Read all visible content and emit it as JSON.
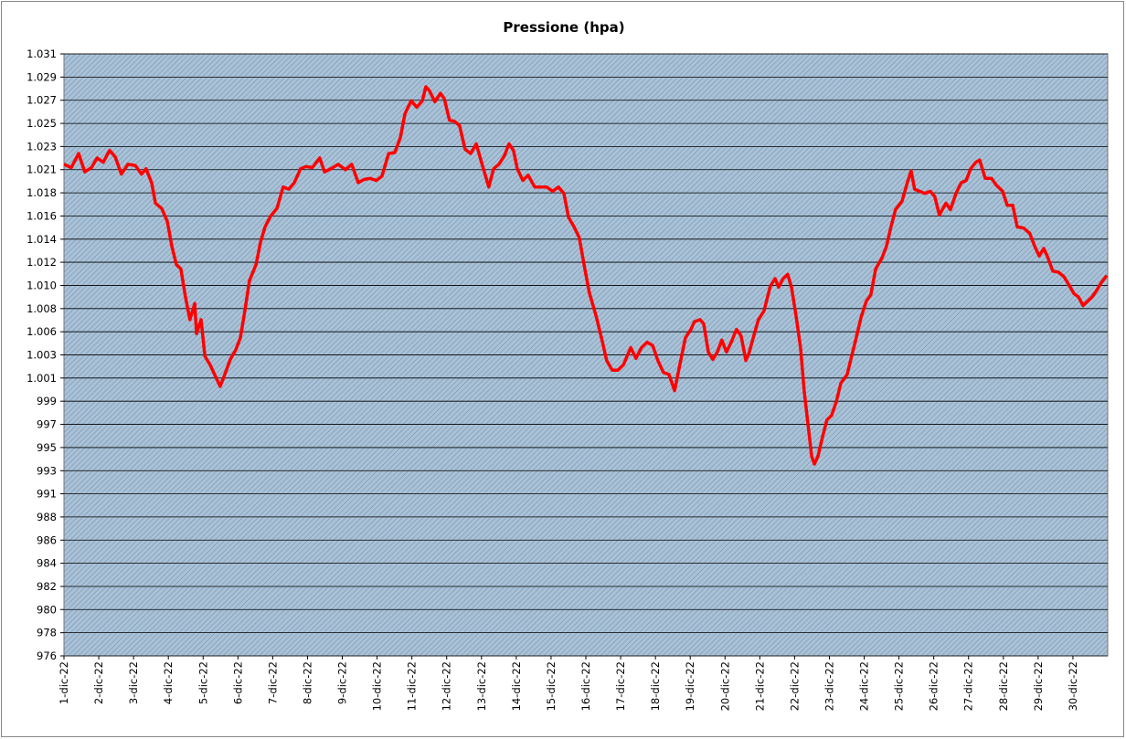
{
  "chart_data": {
    "type": "line",
    "title": "Pressione (hpa)",
    "color": "#ff0000",
    "grid": true,
    "xlim": [
      1,
      31
    ],
    "xticks": [
      {
        "value": 1,
        "label": "1-dic-22"
      },
      {
        "value": 2,
        "label": "2-dic-22"
      },
      {
        "value": 3,
        "label": "3-dic-22"
      },
      {
        "value": 4,
        "label": "4-dic-22"
      },
      {
        "value": 5,
        "label": "5-dic-22"
      },
      {
        "value": 6,
        "label": "6-dic-22"
      },
      {
        "value": 7,
        "label": "7-dic-22"
      },
      {
        "value": 8,
        "label": "8-dic-22"
      },
      {
        "value": 9,
        "label": "9-dic-22"
      },
      {
        "value": 10,
        "label": "10-dic-22"
      },
      {
        "value": 11,
        "label": "11-dic-22"
      },
      {
        "value": 12,
        "label": "12-dic-22"
      },
      {
        "value": 13,
        "label": "13-dic-22"
      },
      {
        "value": 14,
        "label": "14-dic-22"
      },
      {
        "value": 15,
        "label": "15-dic-22"
      },
      {
        "value": 16,
        "label": "16-dic-22"
      },
      {
        "value": 17,
        "label": "17-dic-22"
      },
      {
        "value": 18,
        "label": "18-dic-22"
      },
      {
        "value": 19,
        "label": "19-dic-22"
      },
      {
        "value": 20,
        "label": "20-dic-22"
      },
      {
        "value": 21,
        "label": "21-dic-22"
      },
      {
        "value": 22,
        "label": "22-dic-22"
      },
      {
        "value": 23,
        "label": "23-dic-22"
      },
      {
        "value": 24,
        "label": "24-dic-22"
      },
      {
        "value": 25,
        "label": "25-dic-22"
      },
      {
        "value": 26,
        "label": "26-dic-22"
      },
      {
        "value": 27,
        "label": "27-dic-22"
      },
      {
        "value": 28,
        "label": "28-dic-22"
      },
      {
        "value": 29,
        "label": "29-dic-22"
      },
      {
        "value": 30,
        "label": "30-dic-22"
      }
    ],
    "ylim": [
      975.5,
      1031.35
    ],
    "yticks": [
      {
        "value": 975.5,
        "label": "976"
      },
      {
        "value": 977.65,
        "label": "978"
      },
      {
        "value": 979.8,
        "label": "980"
      },
      {
        "value": 981.94,
        "label": "982"
      },
      {
        "value": 984.09,
        "label": "984"
      },
      {
        "value": 986.24,
        "label": "986"
      },
      {
        "value": 988.39,
        "label": "988"
      },
      {
        "value": 990.54,
        "label": "991"
      },
      {
        "value": 992.68,
        "label": "993"
      },
      {
        "value": 994.83,
        "label": "995"
      },
      {
        "value": 996.98,
        "label": "997"
      },
      {
        "value": 999.13,
        "label": "999"
      },
      {
        "value": 1001.28,
        "label": "1.001"
      },
      {
        "value": 1003.42,
        "label": "1.003"
      },
      {
        "value": 1005.57,
        "label": "1.006"
      },
      {
        "value": 1007.72,
        "label": "1.008"
      },
      {
        "value": 1009.87,
        "label": "1.010"
      },
      {
        "value": 1012.02,
        "label": "1.012"
      },
      {
        "value": 1014.16,
        "label": "1.014"
      },
      {
        "value": 1016.31,
        "label": "1.016"
      },
      {
        "value": 1018.46,
        "label": "1.018"
      },
      {
        "value": 1020.61,
        "label": "1.021"
      },
      {
        "value": 1022.76,
        "label": "1.023"
      },
      {
        "value": 1024.9,
        "label": "1.025"
      },
      {
        "value": 1027.05,
        "label": "1.027"
      },
      {
        "value": 1029.2,
        "label": "1.029"
      },
      {
        "value": 1031.35,
        "label": "1.031"
      }
    ],
    "x": [
      1.0,
      1.21,
      1.42,
      1.6,
      1.79,
      1.95,
      2.13,
      2.31,
      2.47,
      2.65,
      2.84,
      3.05,
      3.23,
      3.36,
      3.52,
      3.63,
      3.81,
      3.97,
      4.1,
      4.23,
      4.36,
      4.49,
      4.62,
      4.76,
      4.81,
      4.94,
      5.05,
      5.2,
      5.33,
      5.49,
      5.62,
      5.78,
      5.94,
      6.07,
      6.2,
      6.33,
      6.52,
      6.65,
      6.78,
      6.94,
      7.12,
      7.3,
      7.46,
      7.62,
      7.8,
      7.96,
      8.14,
      8.35,
      8.49,
      8.67,
      8.88,
      9.09,
      9.27,
      9.46,
      9.62,
      9.8,
      9.98,
      10.14,
      10.33,
      10.51,
      10.67,
      10.8,
      10.98,
      11.14,
      11.3,
      11.4,
      11.51,
      11.66,
      11.82,
      11.93,
      12.08,
      12.22,
      12.37,
      12.53,
      12.69,
      12.85,
      13.0,
      13.21,
      13.35,
      13.5,
      13.66,
      13.79,
      13.92,
      14.03,
      14.19,
      14.34,
      14.53,
      14.71,
      14.87,
      15.05,
      15.21,
      15.37,
      15.5,
      15.66,
      15.81,
      15.97,
      16.1,
      16.29,
      16.45,
      16.6,
      16.76,
      16.92,
      17.08,
      17.29,
      17.44,
      17.6,
      17.76,
      17.92,
      18.07,
      18.23,
      18.39,
      18.55,
      18.7,
      18.86,
      19.02,
      19.12,
      19.28,
      19.39,
      19.52,
      19.65,
      19.78,
      19.91,
      20.04,
      20.18,
      20.33,
      20.46,
      20.6,
      20.7,
      20.81,
      20.96,
      21.12,
      21.3,
      21.44,
      21.54,
      21.67,
      21.8,
      21.91,
      22.04,
      22.17,
      22.28,
      22.38,
      22.49,
      22.57,
      22.67,
      22.8,
      22.93,
      23.06,
      23.2,
      23.33,
      23.51,
      23.64,
      23.77,
      23.91,
      24.06,
      24.19,
      24.33,
      24.51,
      24.64,
      24.77,
      24.9,
      25.09,
      25.24,
      25.35,
      25.45,
      25.59,
      25.74,
      25.9,
      26.03,
      26.16,
      26.35,
      26.48,
      26.64,
      26.79,
      26.93,
      27.06,
      27.21,
      27.32,
      27.48,
      27.66,
      27.79,
      27.98,
      28.11,
      28.27,
      28.4,
      28.58,
      28.76,
      28.9,
      29.03,
      29.16,
      29.26,
      29.42,
      29.58,
      29.74,
      29.89,
      30.03,
      30.16,
      30.29,
      30.42,
      30.55,
      30.68,
      30.81,
      30.97
    ],
    "values": [
      1021.1,
      1020.8,
      1022.1,
      1020.4,
      1020.8,
      1021.7,
      1021.3,
      1022.4,
      1021.8,
      1020.2,
      1021.1,
      1021.0,
      1020.2,
      1020.7,
      1019.4,
      1017.5,
      1017.0,
      1015.8,
      1013.5,
      1011.8,
      1011.4,
      1008.8,
      1006.7,
      1008.2,
      1005.4,
      1006.7,
      1003.3,
      1002.5,
      1001.6,
      1000.5,
      1001.6,
      1003.0,
      1003.9,
      1005.0,
      1007.5,
      1010.3,
      1011.8,
      1013.9,
      1015.3,
      1016.3,
      1017.0,
      1019.0,
      1018.8,
      1019.4,
      1020.7,
      1020.9,
      1020.8,
      1021.7,
      1020.4,
      1020.7,
      1021.1,
      1020.6,
      1021.1,
      1019.4,
      1019.7,
      1019.8,
      1019.6,
      1020.0,
      1022.1,
      1022.2,
      1023.6,
      1025.8,
      1027.0,
      1026.4,
      1027.0,
      1028.3,
      1027.9,
      1026.9,
      1027.7,
      1027.2,
      1025.2,
      1025.1,
      1024.7,
      1022.5,
      1022.1,
      1023.0,
      1021.3,
      1019.0,
      1020.7,
      1021.1,
      1021.9,
      1023.0,
      1022.4,
      1020.7,
      1019.6,
      1020.1,
      1019.0,
      1019.0,
      1019.0,
      1018.6,
      1019.0,
      1018.4,
      1016.2,
      1015.3,
      1014.3,
      1011.4,
      1009.2,
      1007.1,
      1005.0,
      1002.9,
      1002.0,
      1002.0,
      1002.5,
      1004.1,
      1003.1,
      1004.1,
      1004.6,
      1004.3,
      1002.9,
      1001.8,
      1001.6,
      1000.1,
      1002.5,
      1005.0,
      1005.8,
      1006.5,
      1006.7,
      1006.3,
      1003.7,
      1003.0,
      1003.7,
      1004.8,
      1003.7,
      1004.6,
      1005.8,
      1005.2,
      1002.9,
      1003.7,
      1005.0,
      1006.7,
      1007.5,
      1009.8,
      1010.5,
      1009.7,
      1010.5,
      1010.9,
      1009.7,
      1007.1,
      1004.1,
      999.9,
      997.1,
      994.0,
      993.3,
      994.0,
      995.8,
      997.4,
      997.8,
      999.1,
      1000.8,
      1001.6,
      1003.3,
      1005.0,
      1006.9,
      1008.4,
      1009.0,
      1011.4,
      1012.4,
      1013.5,
      1015.3,
      1016.9,
      1017.7,
      1019.4,
      1020.5,
      1018.8,
      1018.6,
      1018.4,
      1018.6,
      1018.1,
      1016.4,
      1017.5,
      1016.9,
      1018.4,
      1019.4,
      1019.6,
      1020.7,
      1021.3,
      1021.5,
      1019.8,
      1019.8,
      1019.2,
      1018.6,
      1017.3,
      1017.3,
      1015.3,
      1015.2,
      1014.7,
      1013.5,
      1012.6,
      1013.3,
      1012.6,
      1011.2,
      1011.1,
      1010.7,
      1009.9,
      1009.1,
      1008.8,
      1008.0,
      1008.4,
      1008.8,
      1009.4,
      1010.1,
      1010.8
    ]
  }
}
